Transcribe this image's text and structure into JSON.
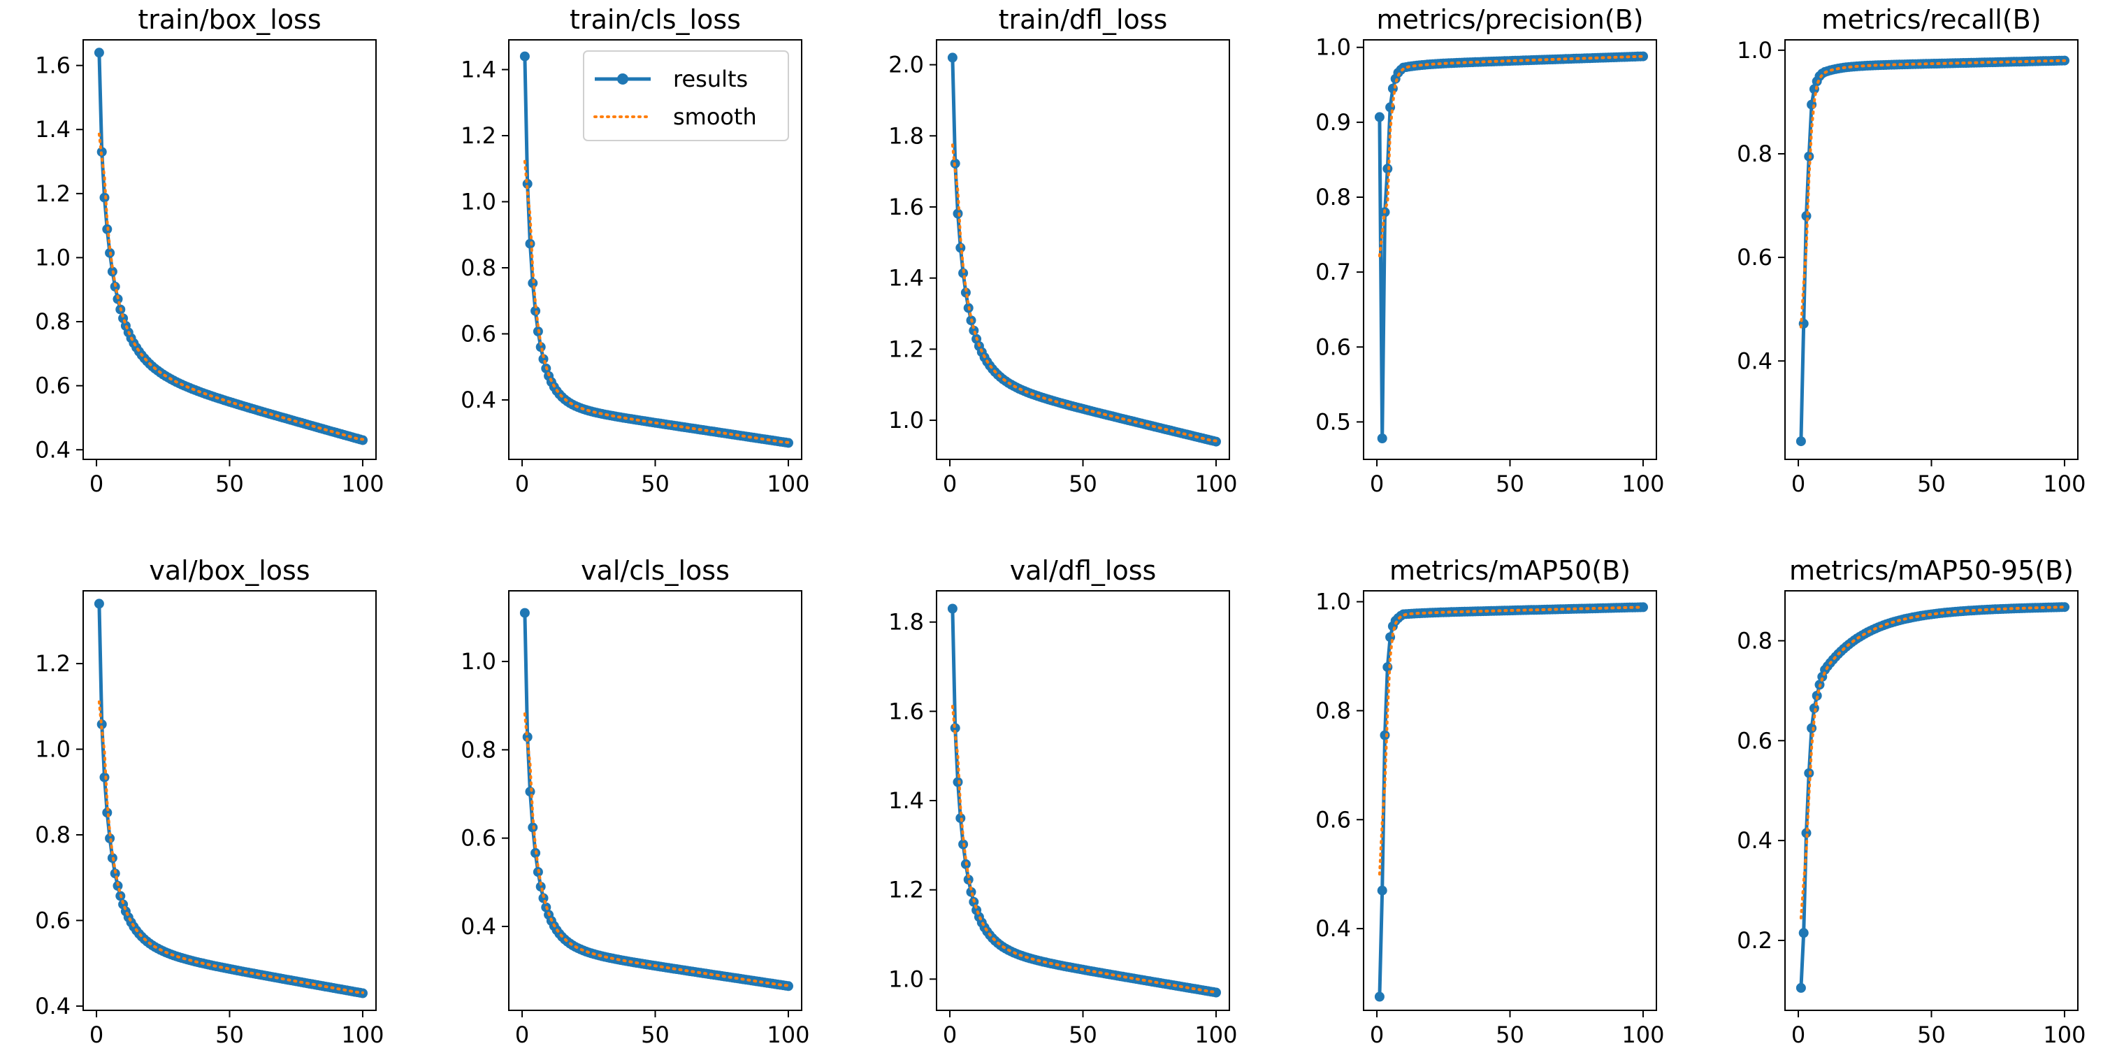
{
  "colors": {
    "results": "#1f77b4",
    "smooth": "#ff7f0e",
    "axis": "#000000",
    "background": "#ffffff"
  },
  "legend": {
    "results_label": "results",
    "smooth_label": "smooth",
    "location": "upper-right of panel 2"
  },
  "chart_data": [
    {
      "type": "line",
      "title": "train/box_loss",
      "xlim": [
        -5,
        105
      ],
      "ylim": [
        0.37,
        1.68
      ],
      "xticks": [
        0,
        50,
        100
      ],
      "xtick_labels": [
        "0",
        "50",
        "100"
      ],
      "yticks": [
        0.4,
        0.6,
        0.8,
        1.0,
        1.2,
        1.4,
        1.6
      ],
      "ytick_labels": [
        "0.4",
        "0.6",
        "0.8",
        "1.0",
        "1.2",
        "1.4",
        "1.6"
      ],
      "series": [
        {
          "name": "results",
          "curve": "decay",
          "start": 1.64,
          "end": 0.43,
          "tau": 4.0,
          "k": 0.7,
          "drift": 0.23
        }
      ]
    },
    {
      "type": "line",
      "title": "train/cls_loss",
      "xlim": [
        -5,
        105
      ],
      "ylim": [
        0.22,
        1.49
      ],
      "xticks": [
        0,
        50,
        100
      ],
      "xtick_labels": [
        "0",
        "50",
        "100"
      ],
      "yticks": [
        0.4,
        0.6,
        0.8,
        1.0,
        1.2,
        1.4
      ],
      "ytick_labels": [
        "0.4",
        "0.6",
        "0.8",
        "1.0",
        "1.2",
        "1.4"
      ],
      "series": [
        {
          "name": "results",
          "curve": "decay",
          "start": 1.44,
          "end": 0.27,
          "tau": 2.8,
          "k": 0.76,
          "drift": 0.12
        }
      ]
    },
    {
      "type": "line",
      "title": "train/dfl_loss",
      "xlim": [
        -5,
        105
      ],
      "ylim": [
        0.89,
        2.07
      ],
      "xticks": [
        0,
        50,
        100
      ],
      "xtick_labels": [
        "0",
        "50",
        "100"
      ],
      "yticks": [
        1.0,
        1.2,
        1.4,
        1.6,
        1.8,
        2.0
      ],
      "ytick_labels": [
        "1.0",
        "1.2",
        "1.4",
        "1.6",
        "1.8",
        "2.0"
      ],
      "series": [
        {
          "name": "results",
          "curve": "decay",
          "start": 2.02,
          "end": 0.94,
          "tau": 3.5,
          "k": 0.73,
          "drift": 0.18
        }
      ]
    },
    {
      "type": "line",
      "title": "metrics/precision(B)",
      "xlim": [
        -5,
        105
      ],
      "ylim": [
        0.45,
        1.01
      ],
      "xticks": [
        0,
        50,
        100
      ],
      "xtick_labels": [
        "0",
        "50",
        "100"
      ],
      "yticks": [
        0.5,
        0.6,
        0.7,
        0.8,
        0.9,
        1.0
      ],
      "ytick_labels": [
        "0.5",
        "0.6",
        "0.7",
        "0.8",
        "0.9",
        "1.0"
      ],
      "series": [
        {
          "name": "results",
          "curve": "rise",
          "end": 0.988,
          "head": [
            0.907,
            0.478,
            0.78,
            0.838,
            0.92,
            0.945,
            0.958,
            0.966,
            0.97,
            0.973
          ],
          "tau": 6,
          "drift": 0.012
        }
      ]
    },
    {
      "type": "line",
      "title": "metrics/recall(B)",
      "xlim": [
        -5,
        105
      ],
      "ylim": [
        0.21,
        1.02
      ],
      "xticks": [
        0,
        50,
        100
      ],
      "xtick_labels": [
        "0",
        "50",
        "100"
      ],
      "yticks": [
        0.4,
        0.6,
        0.8,
        1.0
      ],
      "ytick_labels": [
        "0.4",
        "0.6",
        "0.8",
        "1.0"
      ],
      "series": [
        {
          "name": "results",
          "curve": "rise",
          "end": 0.98,
          "head": [
            0.245,
            0.472,
            0.68,
            0.795,
            0.895,
            0.925,
            0.94,
            0.95,
            0.955,
            0.958
          ],
          "tau": 6,
          "drift": 0.012
        }
      ]
    },
    {
      "type": "line",
      "title": "val/box_loss",
      "xlim": [
        -5,
        105
      ],
      "ylim": [
        0.39,
        1.37
      ],
      "xticks": [
        0,
        50,
        100
      ],
      "xtick_labels": [
        "0",
        "50",
        "100"
      ],
      "yticks": [
        0.4,
        0.6,
        0.8,
        1.0,
        1.2
      ],
      "ytick_labels": [
        "0.4",
        "0.6",
        "0.8",
        "1.0",
        "1.2"
      ],
      "series": [
        {
          "name": "results",
          "curve": "decay",
          "start": 1.34,
          "end": 0.43,
          "tau": 3.3,
          "k": 0.7,
          "drift": 0.11
        }
      ]
    },
    {
      "type": "line",
      "title": "val/cls_loss",
      "xlim": [
        -5,
        105
      ],
      "ylim": [
        0.21,
        1.16
      ],
      "xticks": [
        0,
        50,
        100
      ],
      "xtick_labels": [
        "0",
        "50",
        "100"
      ],
      "yticks": [
        0.4,
        0.6,
        0.8,
        1.0
      ],
      "ytick_labels": [
        "0.4",
        "0.6",
        "0.8",
        "1.0"
      ],
      "series": [
        {
          "name": "results",
          "curve": "decay",
          "start": 1.11,
          "end": 0.265,
          "tau": 2.9,
          "k": 0.72,
          "drift": 0.09
        }
      ]
    },
    {
      "type": "line",
      "title": "val/dfl_loss",
      "xlim": [
        -5,
        105
      ],
      "ylim": [
        0.93,
        1.87
      ],
      "xticks": [
        0,
        50,
        100
      ],
      "xtick_labels": [
        "0",
        "50",
        "100"
      ],
      "yticks": [
        1.0,
        1.2,
        1.4,
        1.6,
        1.8
      ],
      "ytick_labels": [
        "1.0",
        "1.2",
        "1.4",
        "1.6",
        "1.8"
      ],
      "series": [
        {
          "name": "results",
          "curve": "decay",
          "start": 1.83,
          "end": 0.97,
          "tau": 3.2,
          "k": 0.72,
          "drift": 0.1
        }
      ]
    },
    {
      "type": "line",
      "title": "metrics/mAP50(B)",
      "xlim": [
        -5,
        105
      ],
      "ylim": [
        0.25,
        1.02
      ],
      "xticks": [
        0,
        50,
        100
      ],
      "xtick_labels": [
        "0",
        "50",
        "100"
      ],
      "yticks": [
        0.4,
        0.6,
        0.8,
        1.0
      ],
      "ytick_labels": [
        "0.4",
        "0.6",
        "0.8",
        "1.0"
      ],
      "series": [
        {
          "name": "results",
          "curve": "rise",
          "end": 0.99,
          "head": [
            0.275,
            0.47,
            0.755,
            0.88,
            0.935,
            0.955,
            0.965,
            0.97,
            0.974,
            0.977
          ],
          "tau": 6,
          "drift": 0.012
        }
      ]
    },
    {
      "type": "line",
      "title": "metrics/mAP50-95(B)",
      "xlim": [
        -5,
        105
      ],
      "ylim": [
        0.06,
        0.9
      ],
      "xticks": [
        0,
        50,
        100
      ],
      "xtick_labels": [
        "0",
        "50",
        "100"
      ],
      "yticks": [
        0.2,
        0.4,
        0.6,
        0.8
      ],
      "ytick_labels": [
        "0.2",
        "0.4",
        "0.6",
        "0.8"
      ],
      "series": [
        {
          "name": "results",
          "curve": "rise",
          "end": 0.868,
          "head": [
            0.105,
            0.215,
            0.415,
            0.535,
            0.625,
            0.665,
            0.69,
            0.712,
            0.728,
            0.742
          ],
          "tau": 16,
          "drift": 0.01
        }
      ]
    }
  ]
}
